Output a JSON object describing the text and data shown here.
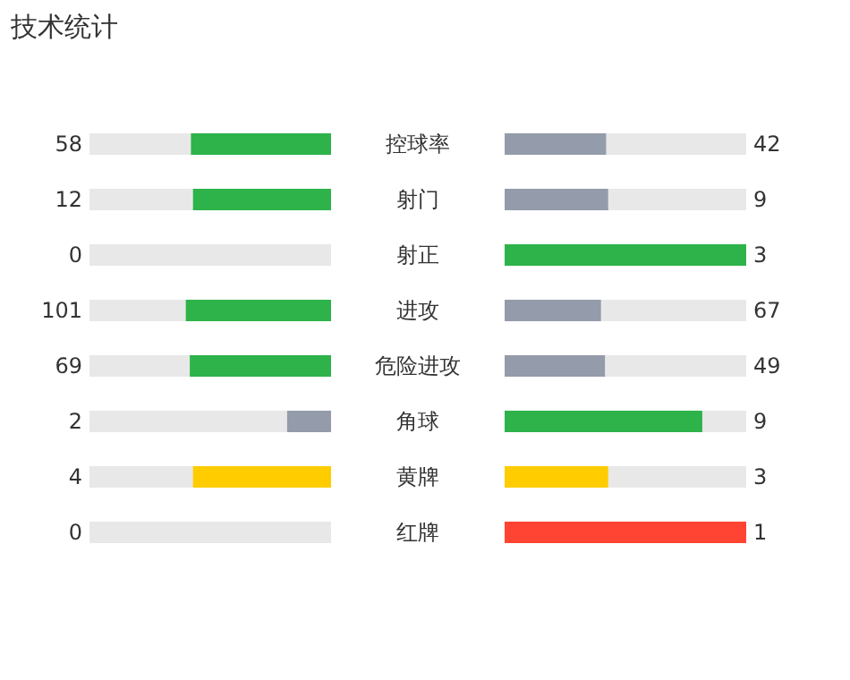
{
  "chart_data": {
    "type": "other",
    "title": "技术统计",
    "data_labels": true,
    "categories": [
      "控球率",
      "射门",
      "射正",
      "进攻",
      "危险进攻",
      "角球",
      "黄牌",
      "红牌"
    ],
    "series": [
      {
        "values": [
          58,
          12,
          0,
          101,
          69,
          2,
          4,
          0
        ],
        "colors": [
          "#2db34a",
          "#2db34a",
          "#2db34a",
          "#2db34a",
          "#2db34a",
          "#949cab",
          "#ffcc00",
          "#ff4433"
        ]
      },
      {
        "values": [
          42,
          9,
          3,
          67,
          49,
          9,
          3,
          1
        ],
        "colors": [
          "#949cab",
          "#949cab",
          "#2db34a",
          "#949cab",
          "#949cab",
          "#2db34a",
          "#ffcc00",
          "#ff4433"
        ]
      }
    ]
  }
}
